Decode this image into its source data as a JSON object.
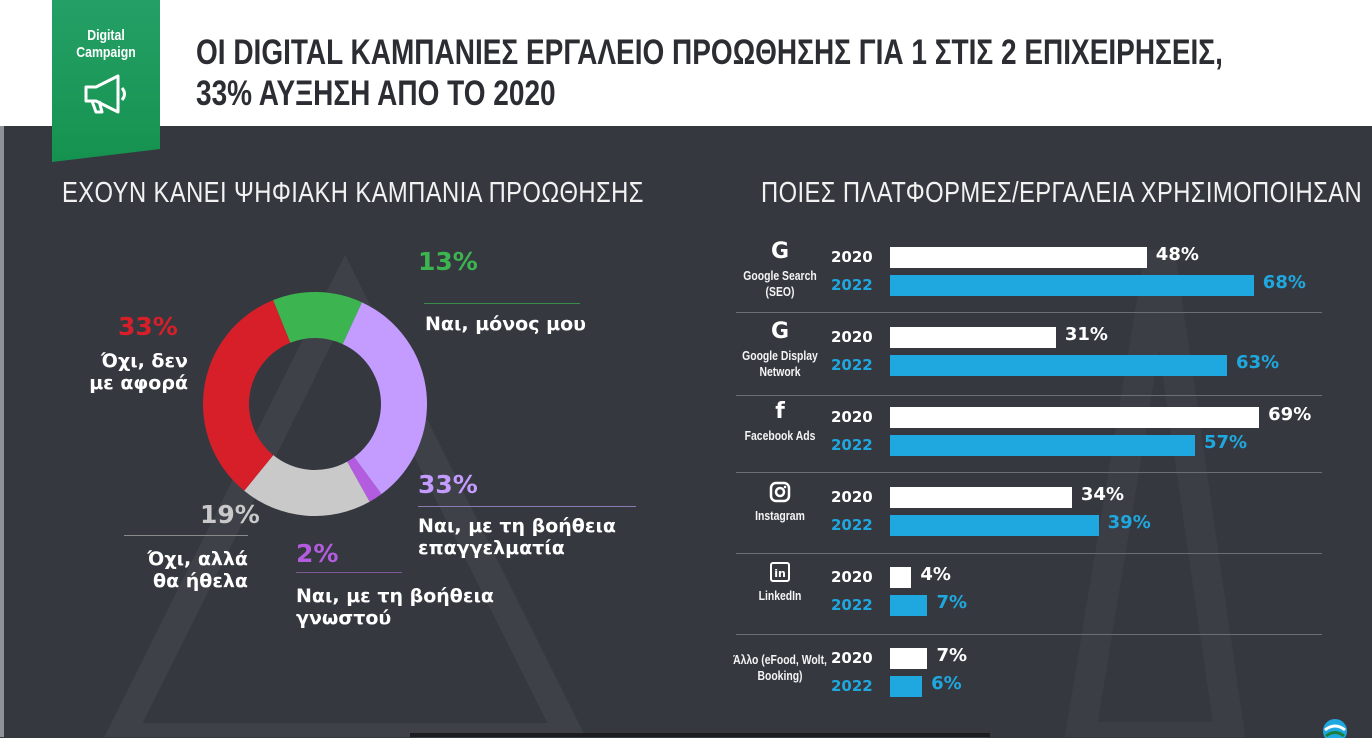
{
  "badge": {
    "line1": "Digital",
    "line2": "Campaign",
    "icon": "megaphone-icon"
  },
  "title": {
    "line1": "ΟΙ DIGITAL ΚΑΜΠΑΝΙΕΣ ΕΡΓΑΛΕΙΟ ΠΡΟΩΘΗΣΗΣ ΓΙΑ 1 ΣΤΙΣ 2 ΕΠΙΧΕΙΡΗΣΕΙΣ,",
    "line2": "33% ΑΥΞΗΣΗ ΑΠΟ ΤΟ 2020"
  },
  "colors": {
    "green": "#3cb450",
    "purple": "#c49bff",
    "magenta": "#b35ce0",
    "gray": "#c9c9c9",
    "red": "#d71f2a",
    "bar2020": "#ffffff",
    "bar2022": "#1fa8e0"
  },
  "chart_data": [
    {
      "type": "pie",
      "title": "ΕΧΟΥΝ ΚΑΝΕΙ ΨΗΦΙΑΚΗ ΚΑΜΠΑΝΙΑ ΠΡΟΩΘΗΣΗΣ",
      "slices": [
        {
          "percent_label": "13%",
          "value": 13,
          "label": "Ναι, μόνος μου",
          "color": "#3cb450"
        },
        {
          "percent_label": "33%",
          "value": 33,
          "label": "Ναι, με τη βοήθεια επαγγελματία",
          "color": "#c49bff"
        },
        {
          "percent_label": "2%",
          "value": 2,
          "label": "Ναι, με τη βοήθεια γνωστού",
          "color": "#b35ce0"
        },
        {
          "percent_label": "19%",
          "value": 19,
          "label": "Όχι, αλλά θα ήθελα",
          "color": "#c9c9c9"
        },
        {
          "percent_label": "33%",
          "value": 33,
          "label": "Όχι, δεν με αφορά",
          "color": "#d71f2a"
        }
      ]
    },
    {
      "type": "bar",
      "title": "ΠΟΙΕΣ ΠΛΑΤΦΟΡΜΕΣ/ΕΡΓΑΛΕΙΑ ΧΡΗΣΙΜΟΠΟΙΗΣΑΝ",
      "orientation": "horizontal",
      "series_names": [
        "2020",
        "2022"
      ],
      "groups": [
        {
          "name": "Google Search (SEO)",
          "icon": "google-icon",
          "values": [
            48,
            68
          ],
          "labels": [
            "48%",
            "68%"
          ]
        },
        {
          "name": "Google Display Network",
          "icon": "google-icon",
          "values": [
            31,
            63
          ],
          "labels": [
            "31%",
            "63%"
          ]
        },
        {
          "name": "Facebook Ads",
          "icon": "facebook-icon",
          "values": [
            69,
            57
          ],
          "labels": [
            "69%",
            "57%"
          ]
        },
        {
          "name": "Instagram",
          "icon": "instagram-icon",
          "values": [
            34,
            39
          ],
          "labels": [
            "34%",
            "39%"
          ]
        },
        {
          "name": "LinkedIn",
          "icon": "linkedin-icon",
          "values": [
            4,
            7
          ],
          "labels": [
            "4%",
            "7%"
          ]
        },
        {
          "name": "Άλλο (eFood, Wolt, Booking)",
          "icon": "",
          "values": [
            7,
            6
          ],
          "labels": [
            "7%",
            "6%"
          ]
        }
      ]
    }
  ]
}
